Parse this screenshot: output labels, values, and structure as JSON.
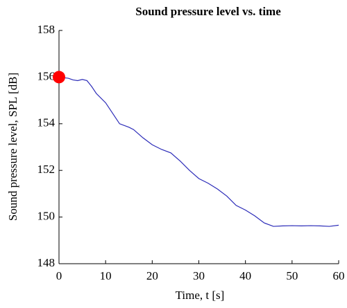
{
  "chart_data": {
    "type": "line",
    "title": "Sound pressure level vs. time",
    "x_label": "Time, t [s]",
    "y_label": "Sound pressure level, SPL [dB]",
    "xlim": [
      0,
      60
    ],
    "xticks": [
      0,
      10,
      20,
      30,
      40,
      50,
      60
    ],
    "ylim": [
      148,
      158
    ],
    "yticks": [
      148,
      150,
      152,
      154,
      156,
      158
    ],
    "series": [
      {
        "color": "#2b2bb8",
        "x": [
          0,
          2,
          3,
          4,
          5,
          6,
          7,
          8,
          10,
          12,
          13,
          15,
          16,
          18,
          20,
          22,
          24,
          26,
          28,
          30,
          32,
          34,
          36,
          38,
          40,
          42,
          44,
          46,
          48,
          50,
          52,
          54,
          56,
          58,
          60
        ],
        "values": [
          156.0,
          155.95,
          155.88,
          155.85,
          155.9,
          155.85,
          155.6,
          155.3,
          154.9,
          154.3,
          154.0,
          153.85,
          153.75,
          153.4,
          153.1,
          152.9,
          152.75,
          152.4,
          152.0,
          151.65,
          151.45,
          151.2,
          150.9,
          150.5,
          150.3,
          150.05,
          149.75,
          149.6,
          149.62,
          149.63,
          149.62,
          149.63,
          149.62,
          149.6,
          149.65
        ]
      }
    ],
    "marker": {
      "x": 0,
      "y": 156,
      "color": "#ff0000"
    }
  }
}
